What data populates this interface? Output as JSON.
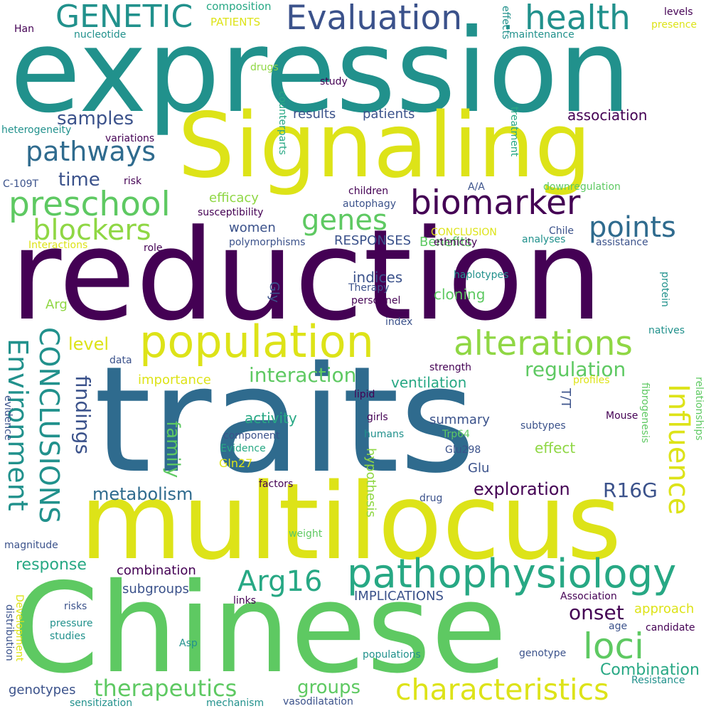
{
  "words": {
    "expression": "expression",
    "reduction": "reduction",
    "traits": "traits",
    "chinese": "Chinese",
    "multilocus": "multilocus",
    "signaling": "Signaling",
    "population": "population",
    "pathophysiology": "pathophysiology",
    "alterations": "alterations",
    "characteristics": "characteristics",
    "biomarker": "biomarker",
    "preschool": "preschool",
    "evaluation": "Evaluation",
    "health": "health",
    "genetic": "GENETIC",
    "pathways": "pathways",
    "blockers": "blockers",
    "genes": "genes",
    "points": "points",
    "loci": "loci",
    "influence": "Influence",
    "environment": "Environment",
    "conclusions": "CONCLUSIONS",
    "therapeutics": "therapeutics",
    "arg16": "Arg16",
    "samples": "samples",
    "time": "time",
    "interaction": "interaction",
    "regulation": "regulation",
    "findings": "findings",
    "family": "family",
    "metabolism": "metabolism",
    "exploration": "exploration",
    "r16g": "R16G",
    "onset": "onset",
    "groups": "groups",
    "combination_title": "Combination",
    "level": "level",
    "efficacy": "efficacy",
    "cloning": "cloning",
    "indices": "indices",
    "association": "association",
    "results": "results",
    "patients": "patients",
    "response": "response",
    "combination": "combination",
    "ventilation": "ventilation",
    "activity": "activity",
    "summary": "summary",
    "effect": "effect",
    "importance": "importance",
    "women": "women",
    "responses": "RESPONSES",
    "benefits": "Benefits",
    "implications": "IMPLICATIONS",
    "subgroups": "subgroups",
    "approach": "approach",
    "genotypes": "genotypes",
    "hypothesis": "hypothesis",
    "gly": "Gly",
    "glu": "Glu",
    "gln27": "Gln27",
    "arg": "Arg",
    "t_t": "T/T",
    "composition": "composition",
    "patients_caps": "PATIENTS",
    "nucleotide": "nucleotide",
    "han": "Han",
    "effects": "effects",
    "levels": "levels",
    "presence": "presence",
    "maintenance": "maintenance",
    "drugs": "drugs",
    "study": "study",
    "heterogeneity": "heterogeneity",
    "counterparts": "counterparts",
    "variations": "variations",
    "treatment": "treatment",
    "c109t": "C-109T",
    "risk": "risk",
    "a_a": "A/A",
    "downregulation": "downregulation",
    "children": "children",
    "autophagy": "autophagy",
    "susceptibility": "susceptibility",
    "conclusion": "CONCLUSION",
    "chile": "Chile",
    "interactions": "Interactions",
    "role": "role",
    "polymorphisms": "polymorphisms",
    "ethnicity": "ethnicity",
    "analyses": "analyses",
    "assistance": "assistance",
    "haplotypes": "haplotypes",
    "therapy": "Therapy",
    "personnel": "personnel",
    "protein": "protein",
    "index": "index",
    "natives": "natives",
    "data": "data",
    "strength": "strength",
    "profiles": "profiles",
    "lipid": "lipid",
    "evidence": "evidence",
    "fibrogenesis": "fibrogenesis",
    "relationships": "relationships",
    "girls": "girls",
    "mouse": "Mouse",
    "component": "component",
    "humans": "humans",
    "trp64": "Trp64",
    "subtypes": "subtypes",
    "evidence_cap": "Evidence",
    "glu298": "Glu298",
    "factors": "factors",
    "drug": "drug",
    "weight": "weight",
    "magnitude": "magnitude",
    "association_cap": "Association",
    "links": "links",
    "risks": "risks",
    "pressure": "pressure",
    "studies": "studies",
    "asp": "Asp",
    "age": "age",
    "candidate": "candidate",
    "distribution": "distribution",
    "development": "Development",
    "populations": "populations",
    "genotype": "genotype",
    "resistance": "Resistance",
    "sensitization": "sensitization",
    "mechanism": "mechanism",
    "vasodilatation": "vasodilatation"
  },
  "palette": {
    "purple": "#440154",
    "indigo": "#3b528b",
    "blue": "#2f6b8e",
    "teal": "#21918c",
    "sea": "#27a884",
    "green": "#5ec962",
    "lime": "#8fd744",
    "yellow": "#dde318",
    "background": "#ffffff"
  }
}
